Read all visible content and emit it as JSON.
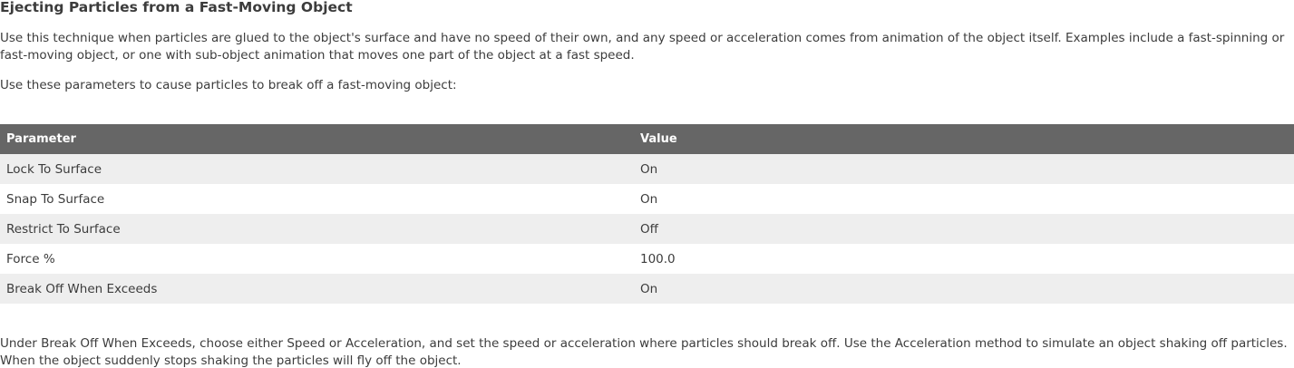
{
  "heading": "Ejecting Particles from a Fast-Moving Object",
  "intro_paragraph": "Use this technique when particles are glued to the object's surface and have no speed of their own, and any speed or acceleration comes from animation of the object itself. Examples include a fast-spinning or fast-moving object, or one with sub-object animation that moves one part of the object at a fast speed.",
  "parameters_lead": "Use these parameters to cause particles to break off a fast-moving object:",
  "table": {
    "headers": [
      "Parameter",
      "Value"
    ],
    "rows": [
      {
        "parameter": "Lock To Surface",
        "value": "On"
      },
      {
        "parameter": "Snap To Surface",
        "value": "On"
      },
      {
        "parameter": "Restrict To Surface",
        "value": "Off"
      },
      {
        "parameter": "Force %",
        "value": "100.0"
      },
      {
        "parameter": "Break Off When Exceeds",
        "value": "On"
      }
    ]
  },
  "closing_paragraph": "Under Break Off When Exceeds, choose either Speed or Acceleration, and set the speed or acceleration where particles should break off. Use the Acceleration method to simulate an object shaking off particles. When the object suddenly stops shaking the particles will fly off the object.",
  "colors": {
    "header_bg": "#666666",
    "header_text": "#ffffff",
    "row_shade": "#eeeeee",
    "body_text": "#3c3c3c"
  }
}
